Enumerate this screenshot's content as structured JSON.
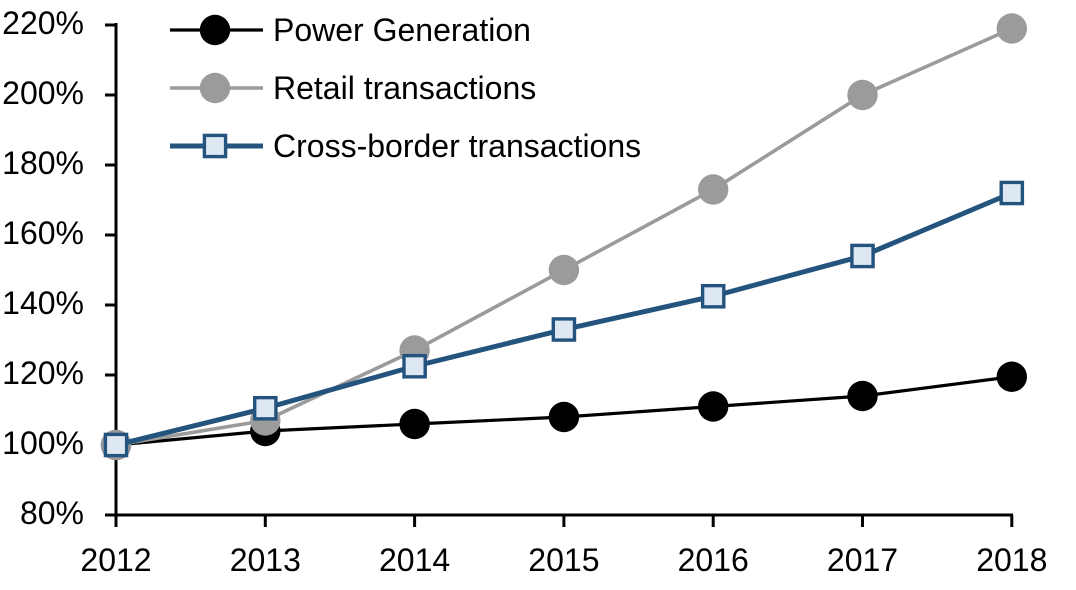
{
  "chart_data": {
    "type": "line",
    "title": "",
    "xlabel": "",
    "ylabel": "",
    "grid": false,
    "legend_position": "top-left-inside",
    "x_categories": [
      "2012",
      "2013",
      "2014",
      "2015",
      "2016",
      "2017",
      "2018"
    ],
    "y_axis": {
      "min": 80,
      "max": 220,
      "step": 20,
      "unit": "%",
      "tick_labels": [
        "80%",
        "100%",
        "120%",
        "140%",
        "160%",
        "180%",
        "200%",
        "220%"
      ]
    },
    "axis_color": "#000000",
    "series": [
      {
        "name": "Power Generation",
        "color": "#000000",
        "marker": "circle",
        "marker_fill": "#000000",
        "line_width": 3.2,
        "values": [
          100,
          104,
          106,
          108,
          111,
          114,
          119.5
        ]
      },
      {
        "name": "Retail transactions",
        "color": "#9B9B9B",
        "marker": "circle",
        "marker_fill": "#9B9B9B",
        "line_width": 3.6,
        "values": [
          100,
          107,
          127,
          150,
          173,
          200,
          219
        ]
      },
      {
        "name": "Cross-border transactions",
        "color": "#24547E",
        "marker": "square",
        "marker_fill": "#DEE8F3",
        "line_width": 5,
        "values": [
          100,
          110.5,
          122.5,
          133,
          142.5,
          154,
          172
        ]
      }
    ]
  }
}
